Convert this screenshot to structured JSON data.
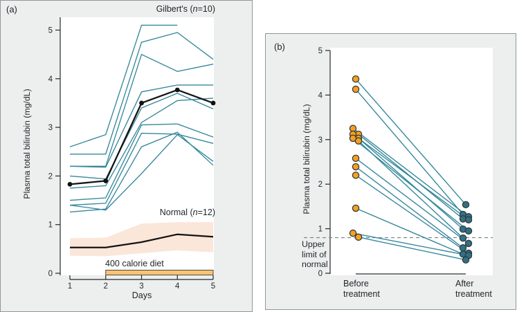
{
  "figure": {
    "panel_a": {
      "tag": "(a)",
      "title": {
        "pre": "Gilbert's (",
        "n": "n",
        "post": "=10)"
      },
      "y_axis_label": "Plasma total bilirubin (mg/dL)",
      "x_axis_label": "Days",
      "normal_annotation": {
        "pre": "Normal (",
        "n": "n",
        "post": "=12)"
      },
      "diet_annotation": "400 calorie diet"
    },
    "panel_b": {
      "tag": "(b)",
      "y_axis_label": "Plasma total bilirubin (mg/dL)",
      "upper_limit_lines": [
        "Upper",
        "limit of",
        "normal"
      ],
      "before_label": "Before treatment",
      "after_label": "After treatment"
    }
  },
  "chart_data": [
    {
      "id": "a",
      "type": "line",
      "title": "Gilbert's (n=10)",
      "xlabel": "Days",
      "ylabel": "Plasma total bilirubin (mg/dL)",
      "x": [
        1,
        2,
        3,
        4,
        5
      ],
      "ylim": [
        0,
        5.25
      ],
      "yticks": [
        0,
        1,
        2,
        3,
        4,
        5
      ],
      "grid": false,
      "patients": [
        [
          2.6,
          2.85,
          5.1,
          5.1,
          null
        ],
        [
          2.45,
          2.45,
          4.75,
          4.95,
          4.4
        ],
        [
          2.2,
          2.2,
          4.5,
          4.15,
          4.3
        ],
        [
          2.2,
          2.18,
          3.73,
          3.87,
          3.87
        ],
        [
          2.0,
          1.94,
          3.4,
          3.7,
          3.38
        ],
        [
          1.75,
          1.8,
          3.1,
          3.55,
          3.6
        ],
        [
          1.5,
          1.55,
          3.05,
          3.07,
          2.8
        ],
        [
          1.4,
          1.44,
          2.88,
          2.86,
          2.67
        ],
        [
          1.4,
          1.3,
          2.05,
          2.85,
          2.3
        ],
        [
          1.26,
          1.32,
          2.6,
          2.9,
          2.22
        ]
      ],
      "gilberts_mean": [
        1.83,
        1.9,
        3.5,
        3.77,
        3.5
      ],
      "normal_band": {
        "label": "Normal (n=12)",
        "upper": [
          0.72,
          0.73,
          1.02,
          1.05,
          1.05
        ],
        "mean": [
          0.53,
          0.53,
          0.64,
          0.8,
          0.75
        ],
        "lower": [
          0.36,
          0.35,
          0.41,
          0.47,
          0.43
        ]
      },
      "diet_bar": {
        "label": "400 calorie diet",
        "x_start": 2,
        "x_end": 5
      },
      "colors": {
        "patient_line": "#35889c",
        "mean_line": "#141414",
        "band_fill": "#fbe6da",
        "diet_fill": "#f7c476",
        "diet_stroke": "#55493a",
        "axis": "#26292b"
      }
    },
    {
      "id": "b",
      "type": "paired-scatter",
      "ylabel": "Plasma total bilirubin (mg/dL)",
      "categories": [
        "Before treatment",
        "After treatment"
      ],
      "ylim": [
        0,
        5.06
      ],
      "yticks": [
        0,
        1,
        2,
        3,
        4,
        5
      ],
      "grid": false,
      "pairs": [
        {
          "before": 4.36,
          "after": 1.54
        },
        {
          "before": 4.13,
          "after": 1.32
        },
        {
          "before": 3.25,
          "after": 1.27
        },
        {
          "before": 3.12,
          "after": 1.22
        },
        {
          "before": 3.12,
          "after": 1.2
        },
        {
          "before": 3.03,
          "after": 0.99
        },
        {
          "before": 3.03,
          "after": 0.95
        },
        {
          "before": 2.97,
          "after": 0.79
        },
        {
          "before": 2.58,
          "after": 0.67
        },
        {
          "before": 2.39,
          "after": 0.57
        },
        {
          "before": 2.2,
          "after": 0.45
        },
        {
          "before": 1.46,
          "after": 0.43
        },
        {
          "before": 0.9,
          "after": 0.4
        },
        {
          "before": 0.81,
          "after": 0.3
        }
      ],
      "reference_line": {
        "value": 0.8,
        "label": "Upper limit of normal"
      },
      "colors": {
        "pair_line": "#35889c",
        "before_dot": "#f5a01f",
        "after_dot": "#2f7186",
        "dot_stroke": "#33393b",
        "dashed": "#808689",
        "axis": "#26292b"
      }
    }
  ]
}
